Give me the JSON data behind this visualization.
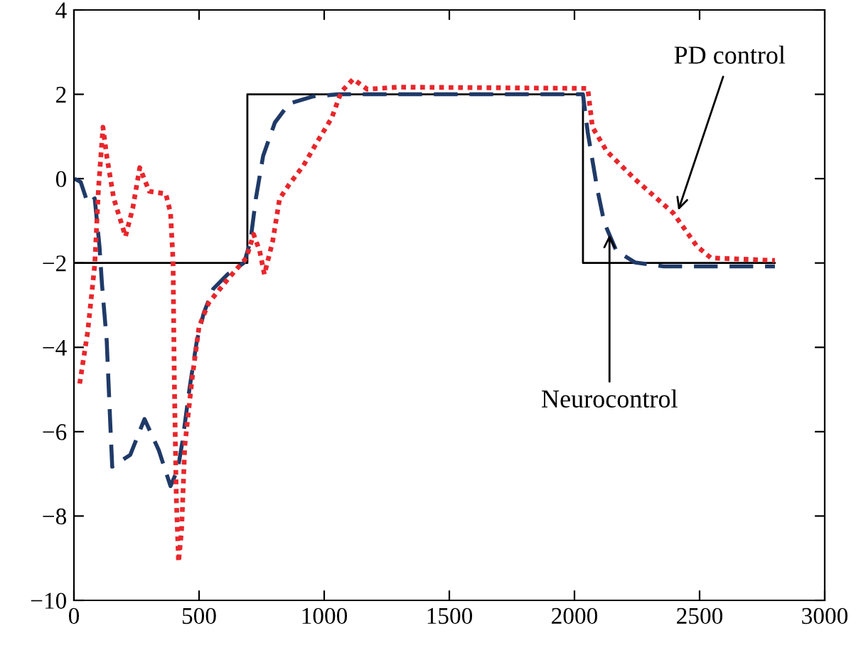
{
  "chart_data": {
    "type": "line",
    "xlim": [
      0,
      3000
    ],
    "xticks": [
      0,
      500,
      1000,
      1500,
      2000,
      2500,
      3000
    ],
    "ylim": [
      -10,
      4
    ],
    "yticks": [
      -10,
      -8,
      -6,
      -4,
      -2,
      0,
      2,
      4
    ],
    "grid": false,
    "legend": false,
    "marker": "none",
    "series": [
      {
        "color": "#000000",
        "line_style": "solid",
        "x": [
          0,
          693,
          693,
          2034,
          2034,
          2800
        ],
        "values": [
          -2,
          -2,
          2,
          2,
          -2,
          -2
        ]
      },
      {
        "color": "#1f3a68",
        "line_style": "dashed",
        "x": [
          2,
          27,
          55,
          83,
          102,
          112,
          131,
          144,
          153,
          225,
          282,
          339,
          386,
          415,
          434,
          462,
          491,
          519,
          557,
          614,
          680,
          705,
          727,
          756,
          803,
          860,
          955,
          1057,
          2034,
          2053,
          2091,
          2119,
          2167,
          2243,
          2356,
          2801
        ],
        "values": [
          0,
          -0.08,
          -0.58,
          -0.47,
          -1.6,
          -2.5,
          -3.85,
          -5.65,
          -6.83,
          -6.55,
          -5.7,
          -6.44,
          -7.29,
          -6.89,
          -6.22,
          -4.97,
          -3.85,
          -3.18,
          -2.61,
          -2.27,
          -1.99,
          -1.49,
          -0.47,
          0.54,
          1.33,
          1.78,
          1.95,
          2.0,
          2.0,
          1.1,
          -0.24,
          -1.04,
          -1.71,
          -1.99,
          -2.08,
          -2.08
        ]
      },
      {
        "color": "#e8262b",
        "line_style": "dotted",
        "x": [
          23,
          55,
          83,
          98,
          116,
          131,
          159,
          206,
          235,
          263,
          301,
          367,
          386,
          396,
          401,
          409,
          418,
          430,
          443,
          472,
          500,
          538,
          614,
          689,
          718,
          742,
          761,
          794,
          822,
          860,
          917,
          973,
          1030,
          1068,
          1116,
          1172,
          1295,
          2053,
          2072,
          2129,
          2243,
          2394,
          2489,
          2545,
          2801
        ],
        "values": [
          -4.86,
          -3.63,
          -2.05,
          -0.24,
          1.22,
          0.54,
          -0.47,
          -1.37,
          -0.7,
          0.26,
          -0.3,
          -0.36,
          -0.81,
          -1.94,
          -4.75,
          -7.57,
          -9.09,
          -8.35,
          -6.33,
          -4.75,
          -3.51,
          -2.95,
          -2.39,
          -1.88,
          -1.32,
          -1.71,
          -2.27,
          -1.49,
          -0.47,
          -0.14,
          0.31,
          0.88,
          1.44,
          2.06,
          2.36,
          2.12,
          2.17,
          2.14,
          1.22,
          0.65,
          -0.02,
          -0.81,
          -1.6,
          -1.88,
          -1.94
        ]
      }
    ],
    "annotations": [
      {
        "text": "PD control",
        "x": 2415,
        "y": -0.75
      },
      {
        "text": "Neurocontrol",
        "x": 2140,
        "y": -1.33
      }
    ]
  }
}
